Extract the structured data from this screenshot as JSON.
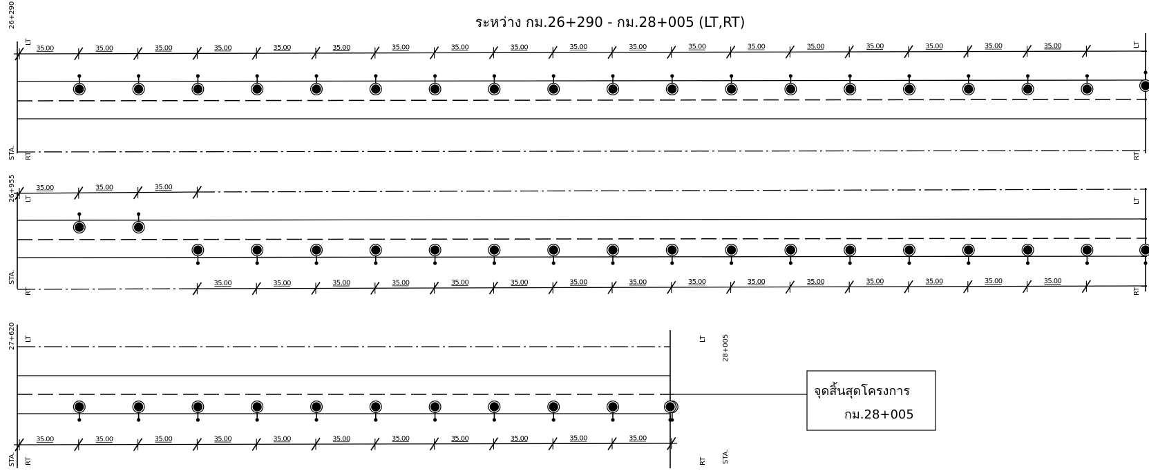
{
  "title": "ระหว่าง  กม.26+290 - กม.28+005 (LT,RT)",
  "side_labels": {
    "left": "LT",
    "right": "RT"
  },
  "spacing_label": "35.00",
  "stations": {
    "start": "26+290",
    "row2": "26+955",
    "row3": "27+620",
    "end": "28+005",
    "prefix": "STA."
  },
  "end_box": {
    "line1": "จุดสิ้นสุดโครงการ",
    "line2": "กม.28+005"
  },
  "rows": [
    {
      "lt_poles": 19,
      "rt_poles": 0
    },
    {
      "lt_poles": 2,
      "rt_poles": 17
    },
    {
      "lt_poles": 0,
      "rt_poles": 11
    }
  ],
  "colors": {
    "ink": "#000000",
    "paper": "#ffffff"
  }
}
